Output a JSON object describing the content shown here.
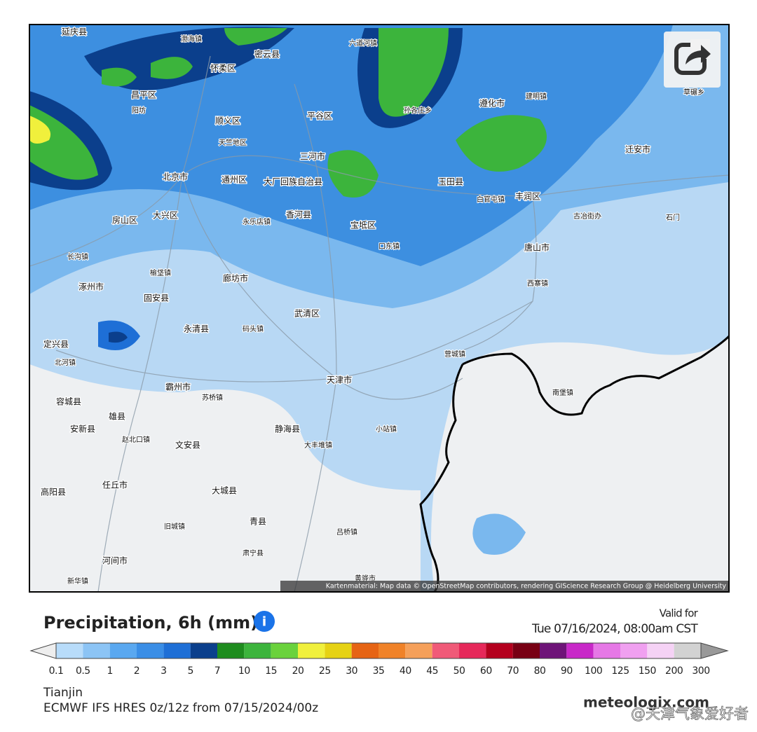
{
  "map": {
    "places": [
      "延庆县",
      "渤海镇",
      "密云县",
      "怀柔区",
      "六道河镇",
      "昌平区",
      "阳坊",
      "顺义区",
      "天竺地区",
      "平谷区",
      "孙各庄乡",
      "遵化市",
      "建明镇",
      "草碾乡",
      "三河市",
      "迁安市",
      "北京市",
      "通州区",
      "大厂回族自治县",
      "玉田县",
      "丰润区",
      "房山区",
      "大兴区",
      "永乐店镇",
      "香河县",
      "宝坻区",
      "白官屯镇",
      "古冶街办",
      "石门",
      "口东镇",
      "唐山市",
      "长沟镇",
      "涿州市",
      "榆垡镇",
      "廊坊市",
      "西寨镇",
      "固安县",
      "武清区",
      "定兴县",
      "永清县",
      "码头镇",
      "营城镇",
      "北河镇",
      "天津市",
      "霸州市",
      "苏桥镇",
      "南堡镇",
      "容城县",
      "雄县",
      "安新县",
      "赵北口镇",
      "文安县",
      "静海县",
      "大丰堆镇",
      "小站镇",
      "高阳县",
      "任丘市",
      "大城县",
      "青县",
      "旧城镇",
      "吕桥镇",
      "肃宁县",
      "河间市",
      "新华镇",
      "黄骅市"
    ],
    "attribution": "Kartenmaterial: Map data © OpenStreetMap contributors, rendering GIScience Research Group @ Heidelberg University"
  },
  "legend": {
    "title": "Precipitation, 6h (mm)",
    "valid_label": "Valid for",
    "valid_time": "Tue 07/16/2024, 08:00am CST",
    "ticks": [
      0.1,
      0.5,
      1,
      2,
      3,
      5,
      7,
      10,
      15,
      20,
      25,
      30,
      35,
      40,
      45,
      50,
      60,
      70,
      80,
      90,
      100,
      125,
      150,
      200,
      300
    ],
    "colors": [
      "#b8dcfa",
      "#8cc4f5",
      "#5aa8f0",
      "#3a8ee6",
      "#1e6fd6",
      "#0b3f8c",
      "#1e8c1e",
      "#3cb43c",
      "#6ad23c",
      "#f0f03c",
      "#e6d214",
      "#e66414",
      "#f08228",
      "#f5a05a",
      "#f05a78",
      "#e6285a",
      "#b4001e",
      "#780014",
      "#6e1478",
      "#c828c8",
      "#e678e6",
      "#f0a0f0",
      "#f5d2f5",
      "#d2d2d2"
    ],
    "location": "Tianjin",
    "model": "ECMWF IFS HRES 0z/12z from 07/15/2024/00z",
    "brand": "meteologix.com",
    "watermark": "@天津气象爱好者"
  }
}
